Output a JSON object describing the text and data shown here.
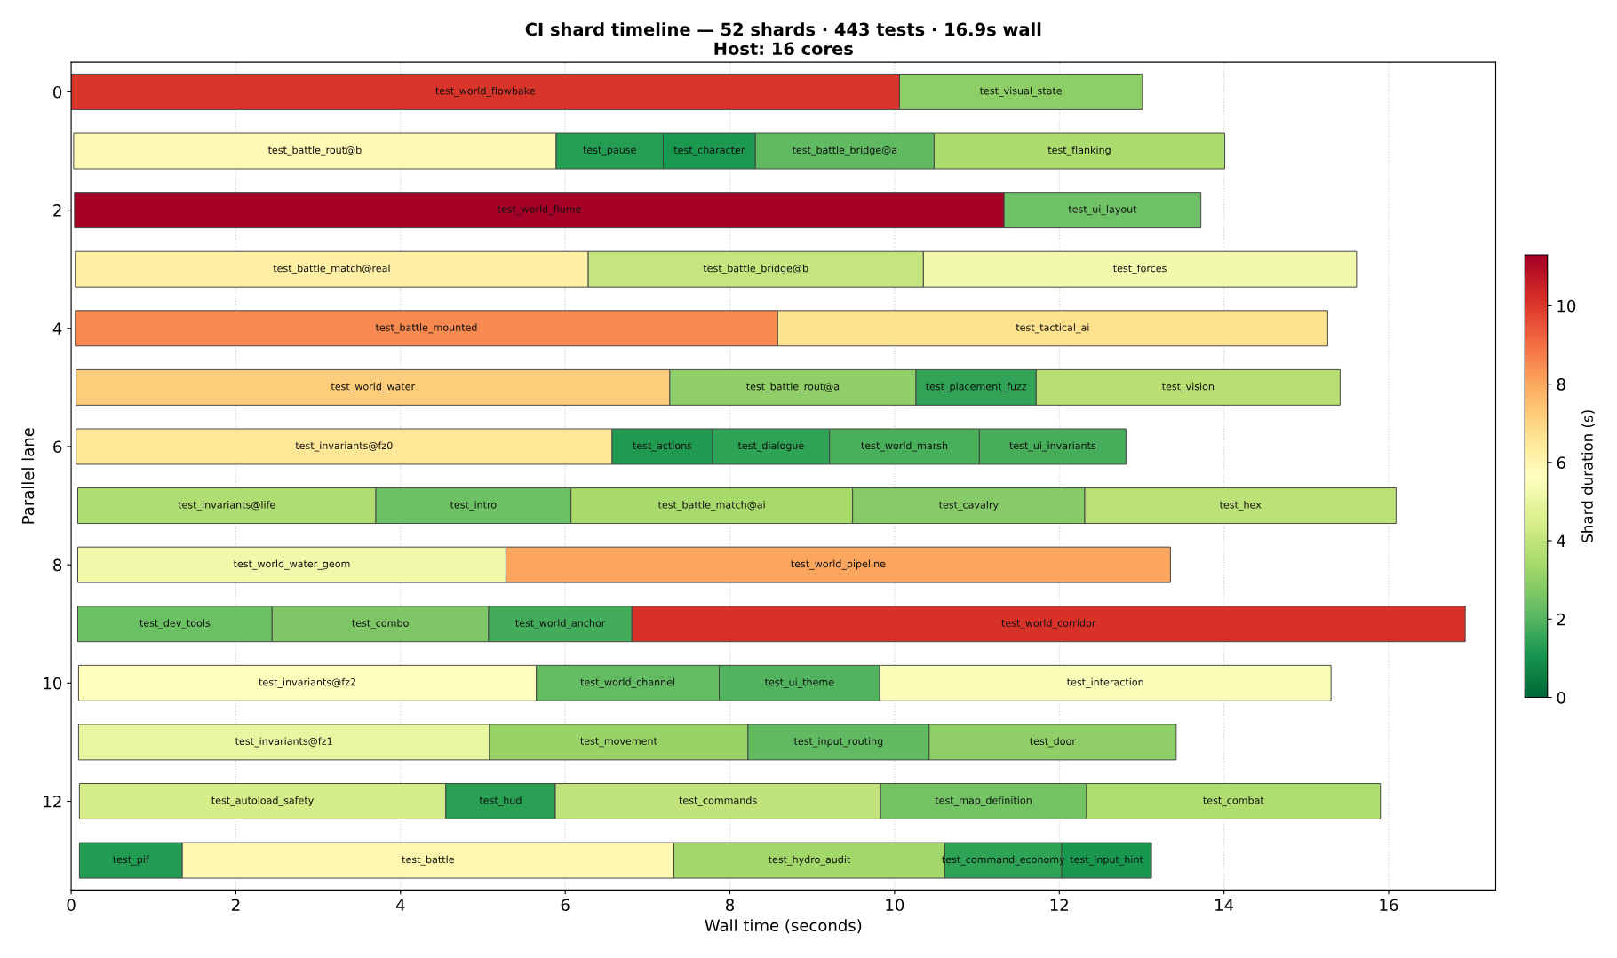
{
  "chart_data": {
    "type": "bar",
    "orientation": "horizontal",
    "title": "CI shard timeline — 52 shards · 443 tests · 16.9s wall",
    "subtitle": "Host: 16 cores",
    "xlabel": "Wall time (seconds)",
    "ylabel": "Parallel lane",
    "clabel": "Shard duration (s)",
    "categories": [
      "0",
      null,
      "2",
      null,
      "4",
      null,
      "6",
      null,
      "8",
      null,
      "10",
      null,
      "12",
      null
    ],
    "xlim": [
      0,
      17.3
    ],
    "xticks": [
      0,
      2,
      4,
      6,
      8,
      10,
      12,
      14,
      16
    ],
    "clim": [
      0,
      11.3
    ],
    "cticks": [
      0,
      2,
      4,
      6,
      8,
      10
    ],
    "grid": "x",
    "legend": false,
    "series": [
      {
        "base": [
          0,
          0.03,
          0.04,
          0.05,
          0.05,
          0.06,
          0.06,
          0.08,
          0.08,
          0.08,
          0.09,
          0.09,
          0.1,
          0.1
        ],
        "values": [
          10.06,
          5.86,
          11.29,
          6.23,
          8.53,
          7.21,
          6.51,
          3.62,
          5.2,
          2.36,
          5.56,
          4.99,
          4.45,
          1.25
        ],
        "value_labels": [
          "test_world_flowbake",
          "test_battle_rout@b",
          "test_world_flume",
          "test_battle_match@real",
          "test_battle_mounted",
          "test_world_water",
          "test_invariants@fz0",
          "test_invariants@life",
          "test_world_water_geom",
          "test_dev_tools",
          "test_invariants@fz2",
          "test_invariants@fz1",
          "test_autoload_safety",
          "test_pif"
        ],
        "colors": [
          "#d93429",
          "#fff9b5",
          "#a50026",
          "#feefa4",
          "#f88a51",
          "#fecd7b",
          "#fee797",
          "#b0dd71",
          "#f0f9aa",
          "#6cc064",
          "#fdfebc",
          "#e9f6a1",
          "#d6ee89",
          "#229c52"
        ]
      },
      {
        "base": [
          10.06,
          5.89,
          11.33,
          6.28,
          8.58,
          7.27,
          6.57,
          3.7,
          5.28,
          2.44,
          5.65,
          5.08,
          4.55,
          1.35
        ],
        "values": [
          2.95,
          1.3,
          2.39,
          4.07,
          6.68,
          2.99,
          1.22,
          2.37,
          8.07,
          2.63,
          2.22,
          3.14,
          1.33,
          5.97
        ],
        "value_labels": [
          "test_visual_state",
          "test_pause",
          "test_ui_layout",
          "test_battle_bridge@b",
          "test_tactical_ai",
          "test_battle_rout@a",
          "test_actions",
          "test_intro",
          "test_world_pipeline",
          "test_combo",
          "test_world_channel",
          "test_movement",
          "test_hud",
          "test_battle"
        ],
        "colors": [
          "#8dce67",
          "#259e53",
          "#6ec164",
          "#c5e67e",
          "#fee28e",
          "#90cf68",
          "#209a51",
          "#6dc064",
          "#fca55d",
          "#7ec665",
          "#63bc62",
          "#99d368",
          "#289f53",
          "#fff6b0"
        ]
      },
      {
        "base": [
          null,
          7.19,
          null,
          10.35,
          null,
          10.26,
          7.79,
          6.07,
          null,
          5.07,
          7.87,
          8.22,
          5.88,
          7.32
        ],
        "values": [
          null,
          1.12,
          null,
          5.26,
          null,
          1.46,
          1.42,
          3.42,
          null,
          1.74,
          1.95,
          2.2,
          3.95,
          3.29
        ],
        "value_labels": [
          null,
          "test_character",
          null,
          "test_forces",
          null,
          "test_placement_fuzz",
          "test_dialogue",
          "test_battle_match@ai",
          null,
          "test_world_anchor",
          "test_ui_theme",
          "test_input_routing",
          "test_commands",
          "test_hydro_audit"
        ],
        "colors": [
          null,
          "#1a9850",
          null,
          "#f2f9ad",
          null,
          "#30a356",
          "#2ea255",
          "#a8da6b",
          null,
          "#43ac5a",
          "#51b35e",
          "#62bb62",
          "#c0e47b",
          "#a2d76a"
        ]
      },
      {
        "base": [
          null,
          8.31,
          null,
          null,
          null,
          11.72,
          9.21,
          9.49,
          null,
          6.81,
          9.82,
          10.42,
          9.83,
          10.61
        ],
        "values": [
          null,
          2.17,
          null,
          null,
          null,
          3.69,
          1.82,
          2.82,
          null,
          10.12,
          5.48,
          3.0,
          2.5,
          1.42
        ],
        "value_labels": [
          null,
          "test_battle_bridge@a",
          null,
          null,
          null,
          "test_vision",
          "test_world_marsh",
          "test_cavalry",
          null,
          "test_world_corridor",
          "test_interaction",
          "test_door",
          "test_map_definition",
          "test_command_economy"
        ],
        "colors": [
          null,
          "#60ba61",
          null,
          null,
          null,
          "#b9df73",
          "#48af5b",
          "#86cb67",
          null,
          "#d83228",
          "#f9fdb7",
          "#90cf68",
          "#73c365",
          "#2ea255"
        ]
      },
      {
        "base": [
          null,
          10.48,
          null,
          null,
          null,
          null,
          11.03,
          12.31,
          null,
          null,
          null,
          null,
          12.33,
          12.03
        ],
        "values": [
          null,
          3.53,
          null,
          null,
          null,
          null,
          1.78,
          3.78,
          null,
          null,
          null,
          null,
          3.57,
          1.09
        ],
        "value_labels": [
          null,
          "test_flanking",
          null,
          null,
          null,
          null,
          "test_ui_invariants",
          "test_hex",
          null,
          null,
          null,
          null,
          "test_combat",
          "test_input_hint"
        ],
        "colors": [
          null,
          "#acdc6e",
          null,
          null,
          null,
          null,
          "#46ae5b",
          "#bce176",
          null,
          null,
          null,
          null,
          "#afdd6f",
          "#19974f"
        ]
      }
    ]
  }
}
